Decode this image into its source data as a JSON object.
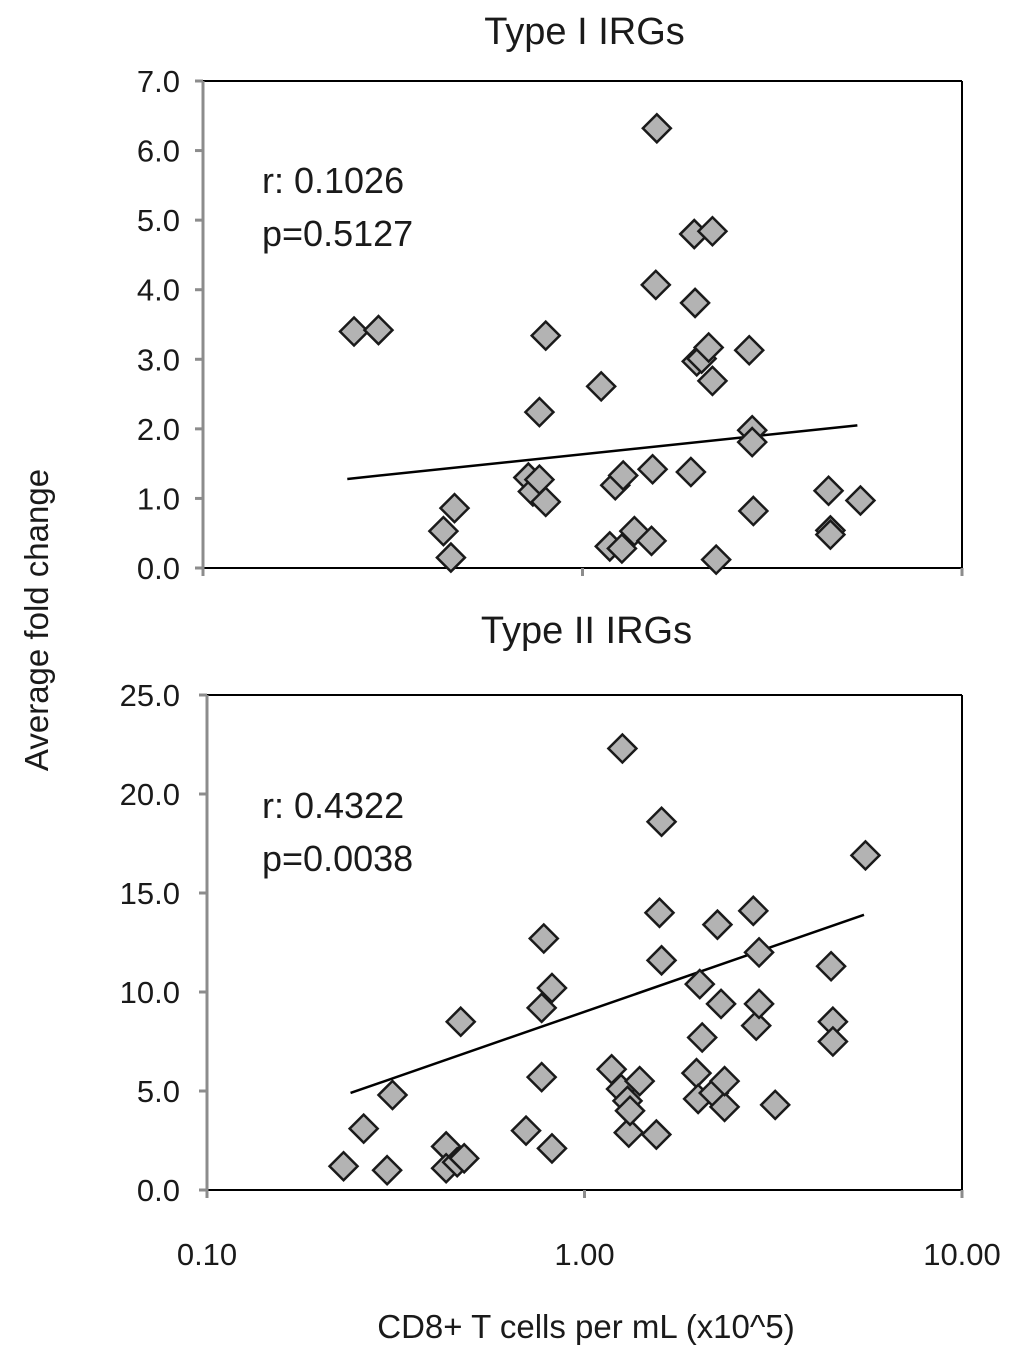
{
  "figure": {
    "ylabel": "Average fold change",
    "xlabel": "CD8+ T cells per mL (x10^5)",
    "colors": {
      "marker_fill": "#b3b3b3",
      "marker_stroke": "#1a1a1a",
      "frame": "#000000",
      "left_axis": "#8c8c8c",
      "text": "#1a1a1a"
    },
    "marker": "diamond"
  },
  "chart_data": [
    {
      "type": "scatter",
      "title": "Type I IRGs",
      "annotation": [
        "r: 0.1026",
        "p=0.5127"
      ],
      "x_scale": "log",
      "xlim": [
        0.1,
        10
      ],
      "ylim": [
        0,
        7
      ],
      "yticks": [
        "0.0",
        "1.0",
        "2.0",
        "3.0",
        "4.0",
        "5.0",
        "6.0",
        "7.0"
      ],
      "xticks": [],
      "trendline": {
        "x": [
          0.24,
          5.3
        ],
        "y": [
          1.28,
          2.05
        ]
      },
      "points": [
        [
          0.25,
          3.4
        ],
        [
          0.29,
          3.42
        ],
        [
          0.43,
          0.53
        ],
        [
          0.45,
          0.15
        ],
        [
          0.46,
          0.86
        ],
        [
          0.72,
          1.3
        ],
        [
          0.74,
          1.1
        ],
        [
          0.77,
          1.27
        ],
        [
          0.77,
          2.24
        ],
        [
          0.8,
          0.95
        ],
        [
          0.8,
          3.34
        ],
        [
          1.12,
          2.61
        ],
        [
          1.18,
          0.31
        ],
        [
          1.22,
          1.19
        ],
        [
          1.28,
          1.33
        ],
        [
          1.27,
          0.28
        ],
        [
          1.37,
          0.53
        ],
        [
          1.52,
          0.39
        ],
        [
          1.53,
          1.42
        ],
        [
          1.57,
          6.32
        ],
        [
          1.56,
          4.07
        ],
        [
          1.93,
          1.38
        ],
        [
          1.97,
          4.8
        ],
        [
          1.98,
          3.81
        ],
        [
          2.0,
          2.97
        ],
        [
          2.06,
          3.01
        ],
        [
          2.15,
          3.17
        ],
        [
          2.2,
          4.84
        ],
        [
          2.2,
          2.69
        ],
        [
          2.25,
          0.12
        ],
        [
          2.75,
          3.13
        ],
        [
          2.8,
          1.98
        ],
        [
          2.8,
          1.81
        ],
        [
          2.82,
          0.82
        ],
        [
          4.45,
          1.11
        ],
        [
          4.5,
          0.54
        ],
        [
          4.5,
          0.48
        ],
        [
          5.4,
          0.97
        ]
      ]
    },
    {
      "type": "scatter",
      "title": "Type II IRGs",
      "annotation": [
        "r: 0.4322",
        "p=0.0038"
      ],
      "x_scale": "log",
      "xlim": [
        0.1,
        10
      ],
      "ylim": [
        0,
        25
      ],
      "yticks": [
        "0.0",
        "5.0",
        "10.0",
        "15.0",
        "20.0",
        "25.0"
      ],
      "xticks": [
        "0.10",
        "1.00",
        "10.00"
      ],
      "trendline": {
        "x": [
          0.24,
          5.5
        ],
        "y": [
          4.9,
          13.9
        ]
      },
      "points": [
        [
          0.23,
          1.2
        ],
        [
          0.26,
          3.1
        ],
        [
          0.3,
          1.0
        ],
        [
          0.31,
          4.8
        ],
        [
          0.43,
          2.2
        ],
        [
          0.43,
          1.1
        ],
        [
          0.46,
          1.4
        ],
        [
          0.48,
          1.6
        ],
        [
          0.47,
          8.5
        ],
        [
          0.7,
          3.0
        ],
        [
          0.77,
          5.7
        ],
        [
          0.77,
          9.2
        ],
        [
          0.78,
          12.7
        ],
        [
          0.82,
          2.1
        ],
        [
          0.82,
          10.2
        ],
        [
          1.18,
          6.1
        ],
        [
          1.25,
          5.1
        ],
        [
          1.26,
          22.3
        ],
        [
          1.3,
          4.5
        ],
        [
          1.31,
          2.9
        ],
        [
          1.32,
          4.0
        ],
        [
          1.4,
          5.5
        ],
        [
          1.55,
          2.8
        ],
        [
          1.58,
          14.0
        ],
        [
          1.6,
          11.6
        ],
        [
          1.6,
          18.6
        ],
        [
          1.98,
          5.9
        ],
        [
          2.0,
          4.6
        ],
        [
          2.02,
          10.4
        ],
        [
          2.05,
          7.7
        ],
        [
          2.2,
          4.9
        ],
        [
          2.25,
          13.4
        ],
        [
          2.3,
          9.4
        ],
        [
          2.35,
          4.2
        ],
        [
          2.35,
          5.5
        ],
        [
          2.8,
          14.1
        ],
        [
          2.85,
          8.3
        ],
        [
          2.9,
          9.4
        ],
        [
          2.9,
          12.0
        ],
        [
          3.2,
          4.3
        ],
        [
          4.5,
          11.3
        ],
        [
          4.55,
          8.5
        ],
        [
          4.55,
          7.5
        ],
        [
          5.55,
          16.9
        ]
      ]
    }
  ]
}
